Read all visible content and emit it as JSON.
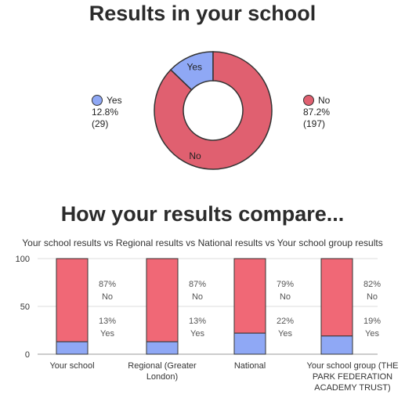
{
  "colors": {
    "yes": "#8fa8f5",
    "no": "#f06876",
    "donut_no": "#e06070",
    "stroke": "#333333",
    "grid": "#dddddd"
  },
  "chart_data": [
    {
      "type": "pie",
      "title": "Results in your school",
      "slices": [
        {
          "label": "Yes",
          "percent_label": "12.8%",
          "count_label": "(29)",
          "value": 29
        },
        {
          "label": "No",
          "percent_label": "87.2%",
          "count_label": "(197)",
          "value": 197
        }
      ],
      "legend": "left-right"
    },
    {
      "type": "bar",
      "stacked": true,
      "title": "How your results compare...",
      "subtitle": "Your school results vs Regional results vs National results vs Your school group results",
      "categories": [
        "Your school",
        "Regional (Greater London)",
        "National",
        "Your school group (THE PARK FEDERATION ACADEMY TRUST)"
      ],
      "category_lines": [
        [
          "Your school"
        ],
        [
          "Regional (Greater",
          "London)"
        ],
        [
          "National"
        ],
        [
          "Your school group (THE",
          "PARK FEDERATION",
          "ACADEMY TRUST)"
        ]
      ],
      "series": [
        {
          "name": "Yes",
          "values": [
            13,
            13,
            22,
            19
          ]
        },
        {
          "name": "No",
          "values": [
            87,
            87,
            79,
            82
          ]
        }
      ],
      "value_labels": {
        "yes": [
          "13%",
          "13%",
          "22%",
          "19%"
        ],
        "no": [
          "87%",
          "87%",
          "79%",
          "82%"
        ]
      },
      "yticks": [
        "0",
        "50",
        "100"
      ],
      "ylim": [
        0,
        100
      ],
      "grid": true
    }
  ]
}
